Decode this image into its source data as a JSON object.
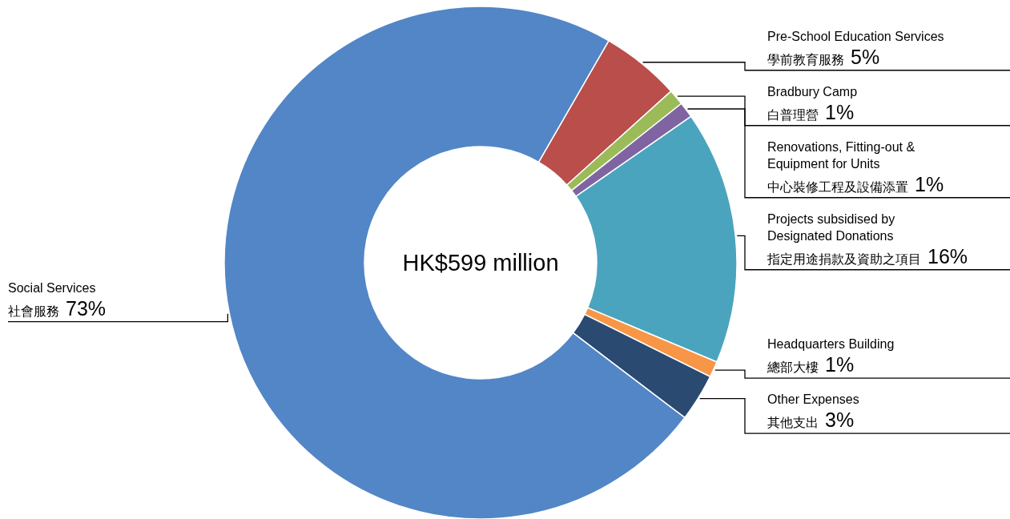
{
  "chart_data": {
    "type": "donut",
    "categories": [
      "Pre-School Education Services\n學前教育服務",
      "Bradbury Camp\n白普理營",
      "Renovations, Fitting-out &\nEquipment for Units\n中心裝修工程及設備添置",
      "Projects subsidised by\nDesignated Donations\n指定用途捐款及資助之項目",
      "Headquarters Building\n總部大樓",
      "Other Expenses\n其他支出",
      "Social Services\n社會服務"
    ],
    "values": [
      5,
      1,
      1,
      16,
      1,
      3,
      73
    ],
    "value_labels": [
      "5%",
      "1%",
      "1%",
      "16%",
      "1%",
      "3%",
      "73%"
    ],
    "colors": [
      "#b94e4b",
      "#9bbb59",
      "#8064a2",
      "#4ba4bd",
      "#f79646",
      "#2a4a72",
      "#5286c6"
    ],
    "annotations": [
      "HK$599 million"
    ]
  }
}
